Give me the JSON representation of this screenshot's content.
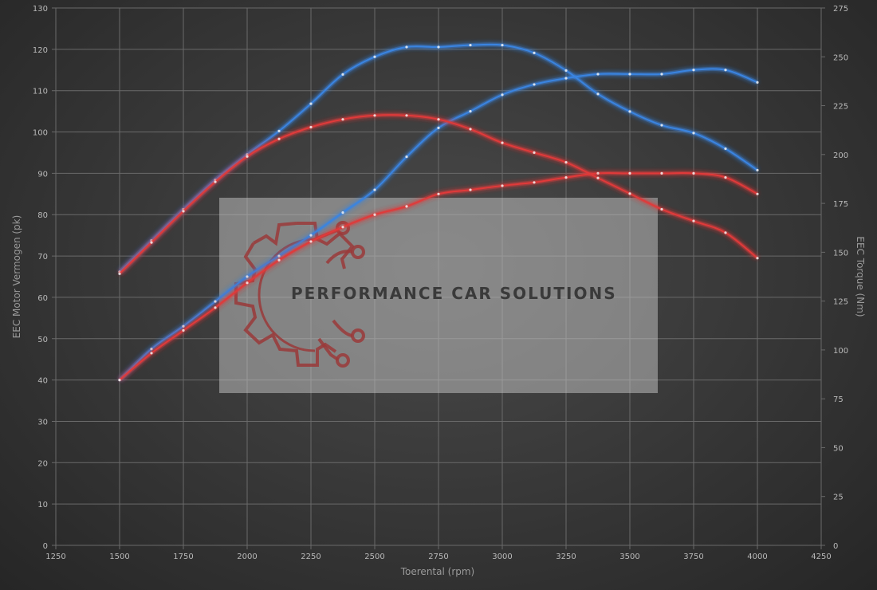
{
  "chart_data": {
    "type": "line",
    "xlabel": "Toerental (rpm)",
    "ylabel_left": "EEC Motor Vermogen (pk)",
    "ylabel_right": "EEC Torque (Nm)",
    "xlim": [
      1250,
      4250
    ],
    "ylim_left": [
      0,
      130
    ],
    "ylim_right": [
      0,
      275
    ],
    "x_ticks": [
      1250,
      1500,
      1750,
      2000,
      2250,
      2500,
      2750,
      3000,
      3250,
      3500,
      3750,
      4000,
      4250
    ],
    "y_left_ticks": [
      0,
      10,
      20,
      30,
      40,
      50,
      60,
      70,
      80,
      90,
      100,
      110,
      120,
      130
    ],
    "y_right_ticks": [
      0,
      25,
      50,
      75,
      100,
      125,
      150,
      175,
      200,
      225,
      250,
      275
    ],
    "grid": true,
    "watermark_text": "PERFORMANCE CAR SOLUTIONS",
    "series": [
      {
        "color": "#3a84e0",
        "axis": "left",
        "x": [
          1500,
          1625,
          1750,
          1875,
          2000,
          2125,
          2250,
          2375,
          2500,
          2625,
          2750,
          2875,
          3000,
          3125,
          3250,
          3375,
          3500,
          3625,
          3750,
          3875,
          4000
        ],
        "y": [
          40,
          47.5,
          53,
          59,
          65,
          70,
          75,
          80.5,
          86,
          94,
          101,
          105,
          109,
          111.5,
          113,
          114,
          114,
          114,
          115,
          115,
          112
        ]
      },
      {
        "color": "#e03a3a",
        "axis": "left",
        "x": [
          1500,
          1625,
          1750,
          1875,
          2000,
          2125,
          2250,
          2375,
          2500,
          2625,
          2750,
          2875,
          3000,
          3125,
          3250,
          3375,
          3500,
          3625,
          3750,
          3875,
          4000
        ],
        "y": [
          40,
          46.5,
          52,
          57.5,
          63.5,
          69,
          73.5,
          77,
          80,
          82,
          85,
          86,
          87,
          87.8,
          89,
          90,
          90,
          90,
          90,
          89,
          85
        ]
      },
      {
        "color": "#3a84e0",
        "axis": "right",
        "x": [
          1500,
          1625,
          1750,
          1875,
          2000,
          2125,
          2250,
          2375,
          2500,
          2625,
          2750,
          2875,
          3000,
          3125,
          3250,
          3375,
          3500,
          3625,
          3750,
          3875,
          4000
        ],
        "y": [
          140,
          156,
          172,
          187,
          200,
          212,
          226,
          241,
          250,
          255,
          255,
          256,
          256,
          252,
          243,
          231,
          222,
          215,
          211,
          203,
          192
        ]
      },
      {
        "color": "#e03a3a",
        "axis": "right",
        "x": [
          1500,
          1625,
          1750,
          1875,
          2000,
          2125,
          2250,
          2375,
          2500,
          2625,
          2750,
          2875,
          3000,
          3125,
          3250,
          3375,
          3500,
          3625,
          3750,
          3875,
          4000
        ],
        "y": [
          139,
          155,
          171,
          186,
          199,
          208,
          214,
          218,
          220,
          220,
          218,
          213,
          206,
          201,
          196,
          188,
          180,
          172,
          166,
          160,
          147
        ]
      }
    ]
  }
}
